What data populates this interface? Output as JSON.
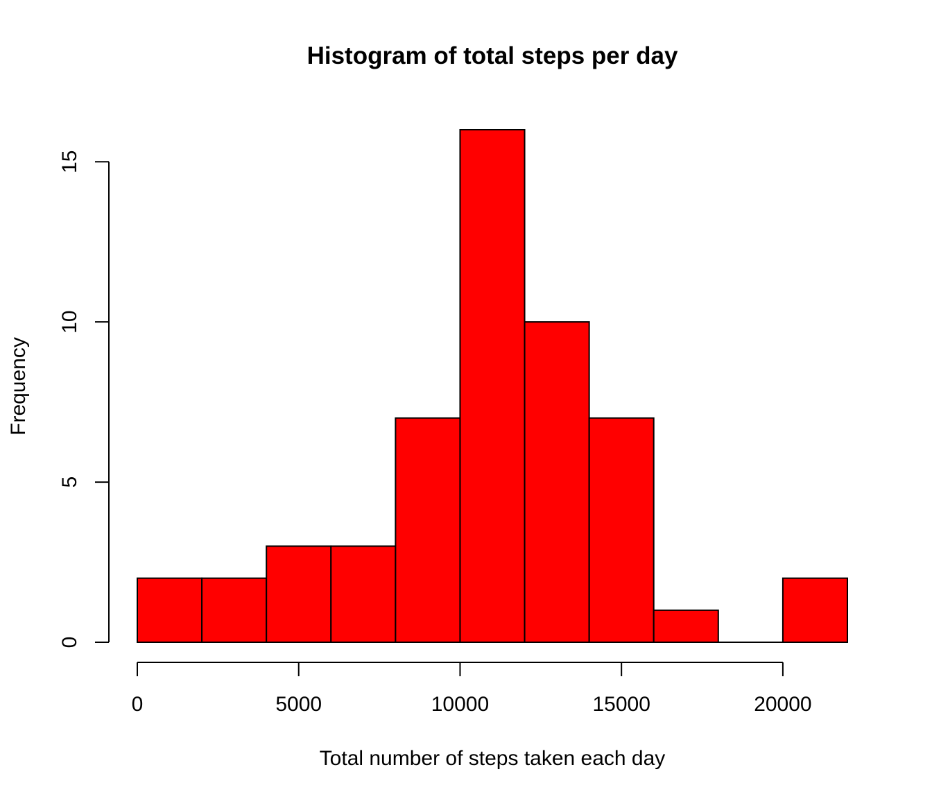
{
  "chart_data": {
    "type": "bar",
    "title": "Histogram of total steps per day",
    "xlabel": "Total number of steps taken each day",
    "ylabel": "Frequency",
    "bin_edges": [
      0,
      2000,
      4000,
      6000,
      8000,
      10000,
      12000,
      14000,
      16000,
      18000,
      20000,
      22000
    ],
    "values": [
      2,
      2,
      3,
      3,
      7,
      16,
      10,
      7,
      1,
      0,
      2
    ],
    "xlim": [
      0,
      22000
    ],
    "ylim": [
      0,
      16
    ],
    "x_ticks": [
      0,
      5000,
      10000,
      15000,
      20000
    ],
    "x_tick_labels": [
      "0",
      "5000",
      "10000",
      "15000",
      "20000"
    ],
    "y_ticks": [
      0,
      5,
      10,
      15
    ],
    "y_tick_labels": [
      "0",
      "5",
      "10",
      "15"
    ],
    "bar_color": "#ff0000",
    "edge_color": "#000000",
    "grid": false,
    "legend": "none"
  }
}
